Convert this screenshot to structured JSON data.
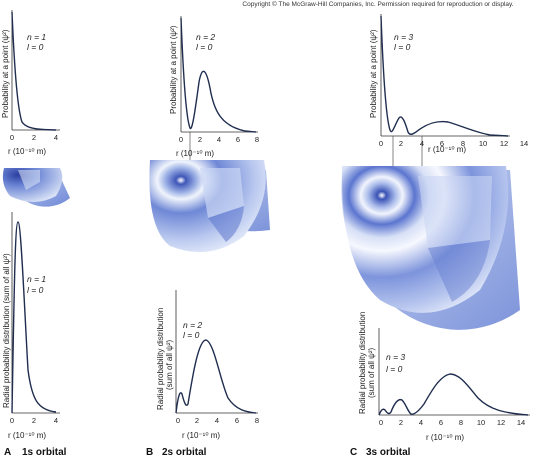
{
  "copyright": "Copyright © The McGraw-Hill Companies, Inc. Permission required for reproduction or display.",
  "colors": {
    "curve": "#1f2d4f",
    "sphere_light": "#e8eefb",
    "sphere_mid": "#8fa5df",
    "sphere_dark": "#3f57b8",
    "background": "#ffffff"
  },
  "panels": [
    {
      "key": "a",
      "label_letter": "A",
      "label_text": "1s orbital",
      "top_plot": {
        "ylabel": "Probability at a point (ψ²)",
        "n_label": "n = 1",
        "l_label": "l = 0",
        "xlabel": "r (10⁻¹⁰ m)",
        "ticks": [
          "0",
          "2",
          "4"
        ]
      },
      "bottom_plot": {
        "ylabel_line1": "Radial probability distribution (sum of all ψ²)",
        "n_label": "n = 1",
        "l_label": "l = 0",
        "xlabel": "r (10⁻¹⁰ m)",
        "ticks": [
          "0",
          "2",
          "4"
        ]
      }
    },
    {
      "key": "b",
      "label_letter": "B",
      "label_text": "2s orbital",
      "top_plot": {
        "ylabel": "Probability at a point (ψ²)",
        "n_label": "n = 2",
        "l_label": "l = 0",
        "xlabel": "r (10⁻¹⁰ m)",
        "ticks": [
          "0",
          "2",
          "4",
          "6",
          "8"
        ]
      },
      "bottom_plot": {
        "ylabel_line1": "Radial probability distribution",
        "ylabel_line2": "(sum of all ψ²)",
        "n_label": "n = 2",
        "l_label": "l = 0",
        "xlabel": "r (10⁻¹⁰ m)",
        "ticks": [
          "0",
          "2",
          "4",
          "6",
          "8"
        ]
      }
    },
    {
      "key": "c",
      "label_letter": "C",
      "label_text": "3s orbital",
      "top_plot": {
        "ylabel": "Probability at a point (ψ²)",
        "n_label": "n = 3",
        "l_label": "l = 0",
        "xlabel": "r (10⁻¹⁰ m)",
        "ticks": [
          "0",
          "2",
          "4",
          "6",
          "8",
          "10",
          "12",
          "14"
        ]
      },
      "bottom_plot": {
        "ylabel_line1": "Radial probability distribution",
        "ylabel_line2": "(sum of all ψ²)",
        "n_label": "n = 3",
        "l_label": "l = 0",
        "xlabel": "r (10⁻¹⁰ m)",
        "ticks": [
          "0",
          "2",
          "4",
          "6",
          "8",
          "10",
          "12",
          "14"
        ]
      }
    }
  ]
}
